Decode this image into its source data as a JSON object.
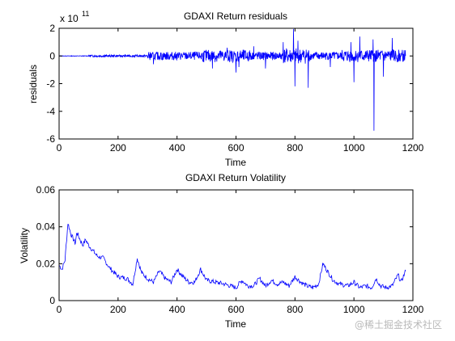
{
  "watermark": "@稀土掘金技术社区",
  "chart_data": [
    {
      "type": "line",
      "title": "GDAXI Return residuals",
      "xlabel": "Time",
      "ylabel": "residuals",
      "exponent_base": "x 10",
      "exponent_power": "11",
      "xlim": [
        0,
        1200
      ],
      "ylim": [
        -6,
        2
      ],
      "xticks": [
        0,
        200,
        400,
        600,
        800,
        1000,
        1200
      ],
      "yticks": [
        -6,
        -4,
        -2,
        0,
        2
      ],
      "xtick_labels": [
        "0",
        "200",
        "400",
        "600",
        "800",
        "1000",
        "1200"
      ],
      "ytick_labels": [
        "-6",
        "-4",
        "-2",
        "0",
        "2"
      ],
      "grid": false,
      "color": "#0000ff",
      "x_range": [
        1,
        1175
      ],
      "activity_segments": [
        {
          "from": 1,
          "to": 100,
          "amplitude": 0.02
        },
        {
          "from": 100,
          "to": 300,
          "amplitude": 0.08
        },
        {
          "from": 300,
          "to": 480,
          "amplitude": 0.3
        },
        {
          "from": 480,
          "to": 650,
          "amplitude": 0.45
        },
        {
          "from": 650,
          "to": 760,
          "amplitude": 0.3
        },
        {
          "from": 760,
          "to": 850,
          "amplitude": 0.55
        },
        {
          "from": 850,
          "to": 960,
          "amplitude": 0.3
        },
        {
          "from": 960,
          "to": 1175,
          "amplitude": 0.45
        }
      ],
      "spikes": [
        {
          "x": 320,
          "y": -0.6
        },
        {
          "x": 350,
          "y": -0.3
        },
        {
          "x": 520,
          "y": -0.9
        },
        {
          "x": 570,
          "y": 0.6
        },
        {
          "x": 600,
          "y": -1.2
        },
        {
          "x": 610,
          "y": -0.8
        },
        {
          "x": 660,
          "y": 0.7
        },
        {
          "x": 700,
          "y": -0.9
        },
        {
          "x": 760,
          "y": 1.0
        },
        {
          "x": 795,
          "y": 1.95
        },
        {
          "x": 800,
          "y": -2.2
        },
        {
          "x": 810,
          "y": 1.1
        },
        {
          "x": 845,
          "y": -2.3
        },
        {
          "x": 920,
          "y": -0.8
        },
        {
          "x": 990,
          "y": 1.0
        },
        {
          "x": 1000,
          "y": -1.9
        },
        {
          "x": 1020,
          "y": 1.4
        },
        {
          "x": 1065,
          "y": 1.2
        },
        {
          "x": 1068,
          "y": -5.4
        },
        {
          "x": 1100,
          "y": -1.5
        },
        {
          "x": 1130,
          "y": 1.3
        },
        {
          "x": 1150,
          "y": -0.3
        }
      ]
    },
    {
      "type": "line",
      "title": "GDAXI Return Volatility",
      "xlabel": "Time",
      "ylabel": "Volatility",
      "xlim": [
        0,
        1200
      ],
      "ylim": [
        0,
        0.06
      ],
      "xticks": [
        0,
        200,
        400,
        600,
        800,
        1000,
        1200
      ],
      "yticks": [
        0,
        0.02,
        0.04,
        0.06
      ],
      "xtick_labels": [
        "0",
        "200",
        "400",
        "600",
        "800",
        "1000",
        "1200"
      ],
      "ytick_labels": [
        "0",
        "0.02",
        "0.04",
        "0.06"
      ],
      "grid": false,
      "color": "#0000ff",
      "x": [
        1,
        10,
        20,
        30,
        40,
        55,
        60,
        80,
        90,
        100,
        110,
        130,
        150,
        170,
        200,
        230,
        250,
        265,
        280,
        300,
        320,
        340,
        360,
        380,
        400,
        420,
        440,
        460,
        480,
        500,
        530,
        560,
        600,
        620,
        640,
        660,
        680,
        700,
        720,
        740,
        760,
        780,
        800,
        820,
        840,
        860,
        880,
        895,
        910,
        930,
        950,
        980,
        1000,
        1020,
        1040,
        1060,
        1075,
        1090,
        1110,
        1130,
        1150,
        1160,
        1175
      ],
      "y": [
        0.019,
        0.017,
        0.022,
        0.042,
        0.036,
        0.031,
        0.037,
        0.03,
        0.033,
        0.03,
        0.028,
        0.024,
        0.023,
        0.018,
        0.013,
        0.012,
        0.009,
        0.023,
        0.015,
        0.012,
        0.01,
        0.016,
        0.012,
        0.01,
        0.017,
        0.013,
        0.01,
        0.01,
        0.017,
        0.011,
        0.01,
        0.009,
        0.007,
        0.011,
        0.008,
        0.008,
        0.012,
        0.008,
        0.011,
        0.009,
        0.01,
        0.008,
        0.013,
        0.01,
        0.008,
        0.007,
        0.009,
        0.02,
        0.016,
        0.011,
        0.009,
        0.008,
        0.01,
        0.007,
        0.008,
        0.007,
        0.012,
        0.008,
        0.007,
        0.008,
        0.014,
        0.01,
        0.016
      ]
    }
  ]
}
